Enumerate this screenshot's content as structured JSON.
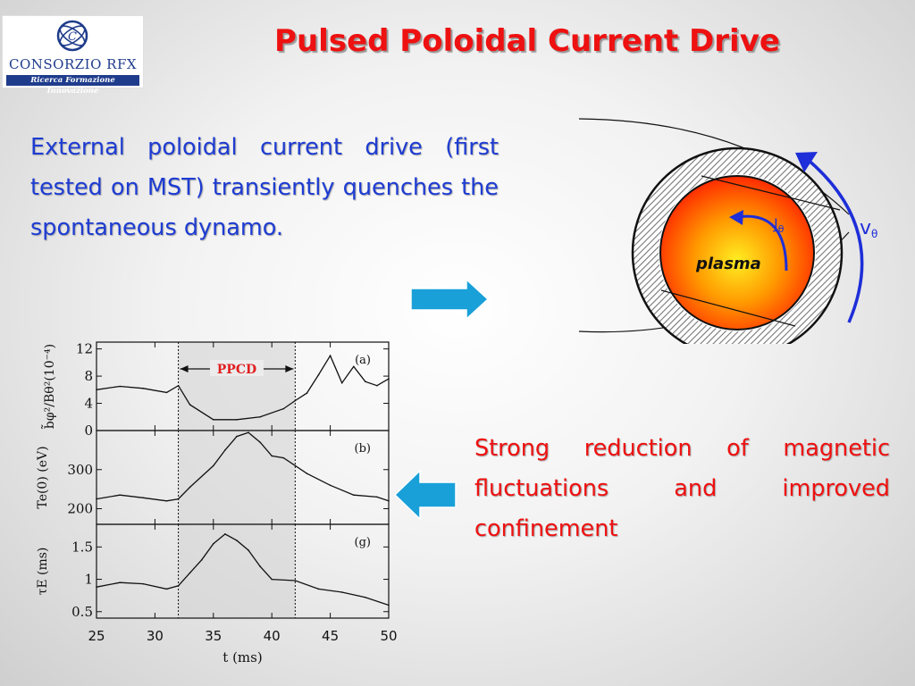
{
  "logo": {
    "name": "CONSORZIO RFX",
    "tagline": "Ricerca Formazione Innovazione"
  },
  "title": "Pulsed Poloidal Current Drive",
  "text_blue": "External poloidal current drive (first tested on MST) transiently quenches the spontaneous dynamo.",
  "text_red": "Strong reduction of magnetic fluctuations and improved confinement",
  "diagram": {
    "plasma_label": "plasma",
    "j_label": "J",
    "j_sub": "θ",
    "v_label": "v",
    "v_sub": "θ"
  },
  "colors": {
    "title": "#ee1111",
    "blue_text": "#1e3cd2",
    "arrow": "#1aa0d8",
    "plasma_edge": "#ff2a00",
    "plasma_core": "#ffee22"
  },
  "chart_data": [
    {
      "type": "line",
      "panel": "(a)",
      "ylabel": "b̃φ²/Bθ²(10⁻⁴)",
      "yticks": [
        0,
        4,
        8,
        12
      ],
      "ylim": [
        0,
        13
      ],
      "annotation": "PPCD",
      "shaded_x": [
        32,
        42
      ],
      "series": [
        {
          "x": [
            25,
            27,
            29,
            31,
            32,
            33,
            35,
            37,
            39,
            41,
            42,
            43,
            44,
            45,
            46,
            47,
            48,
            49,
            50
          ],
          "values": [
            6,
            6.5,
            6.2,
            5.6,
            6.6,
            3.8,
            1.6,
            1.6,
            2.0,
            3.2,
            4.4,
            5.5,
            8.2,
            11.0,
            7.0,
            9.4,
            7.2,
            6.6,
            7.6
          ]
        }
      ]
    },
    {
      "type": "line",
      "panel": "(b)",
      "ylabel": "Te(0) (eV)",
      "yticks": [
        200,
        300
      ],
      "ylim": [
        160,
        400
      ],
      "series": [
        {
          "x": [
            25,
            27,
            29,
            31,
            32,
            33,
            35,
            36,
            37,
            38,
            39,
            40,
            41,
            43,
            45,
            47,
            49,
            50
          ],
          "values": [
            225,
            235,
            228,
            220,
            225,
            255,
            310,
            350,
            385,
            395,
            370,
            335,
            330,
            290,
            260,
            235,
            230,
            220
          ]
        }
      ]
    },
    {
      "type": "line",
      "panel": "(g)",
      "ylabel": "τE (ms)",
      "yticks": [
        0.5,
        1,
        1.5
      ],
      "ylim": [
        0.4,
        1.85
      ],
      "xticks": [
        25,
        30,
        35,
        40,
        45,
        50
      ],
      "xlim": [
        25,
        50
      ],
      "xlabel": "t (ms)",
      "series": [
        {
          "x": [
            25,
            27,
            29,
            31,
            32,
            33,
            34,
            35,
            36,
            37,
            38,
            39,
            40,
            42,
            44,
            46,
            48,
            50
          ],
          "values": [
            0.88,
            0.95,
            0.93,
            0.85,
            0.9,
            1.1,
            1.3,
            1.55,
            1.7,
            1.6,
            1.45,
            1.2,
            1.0,
            0.98,
            0.85,
            0.8,
            0.72,
            0.6
          ]
        }
      ]
    }
  ]
}
